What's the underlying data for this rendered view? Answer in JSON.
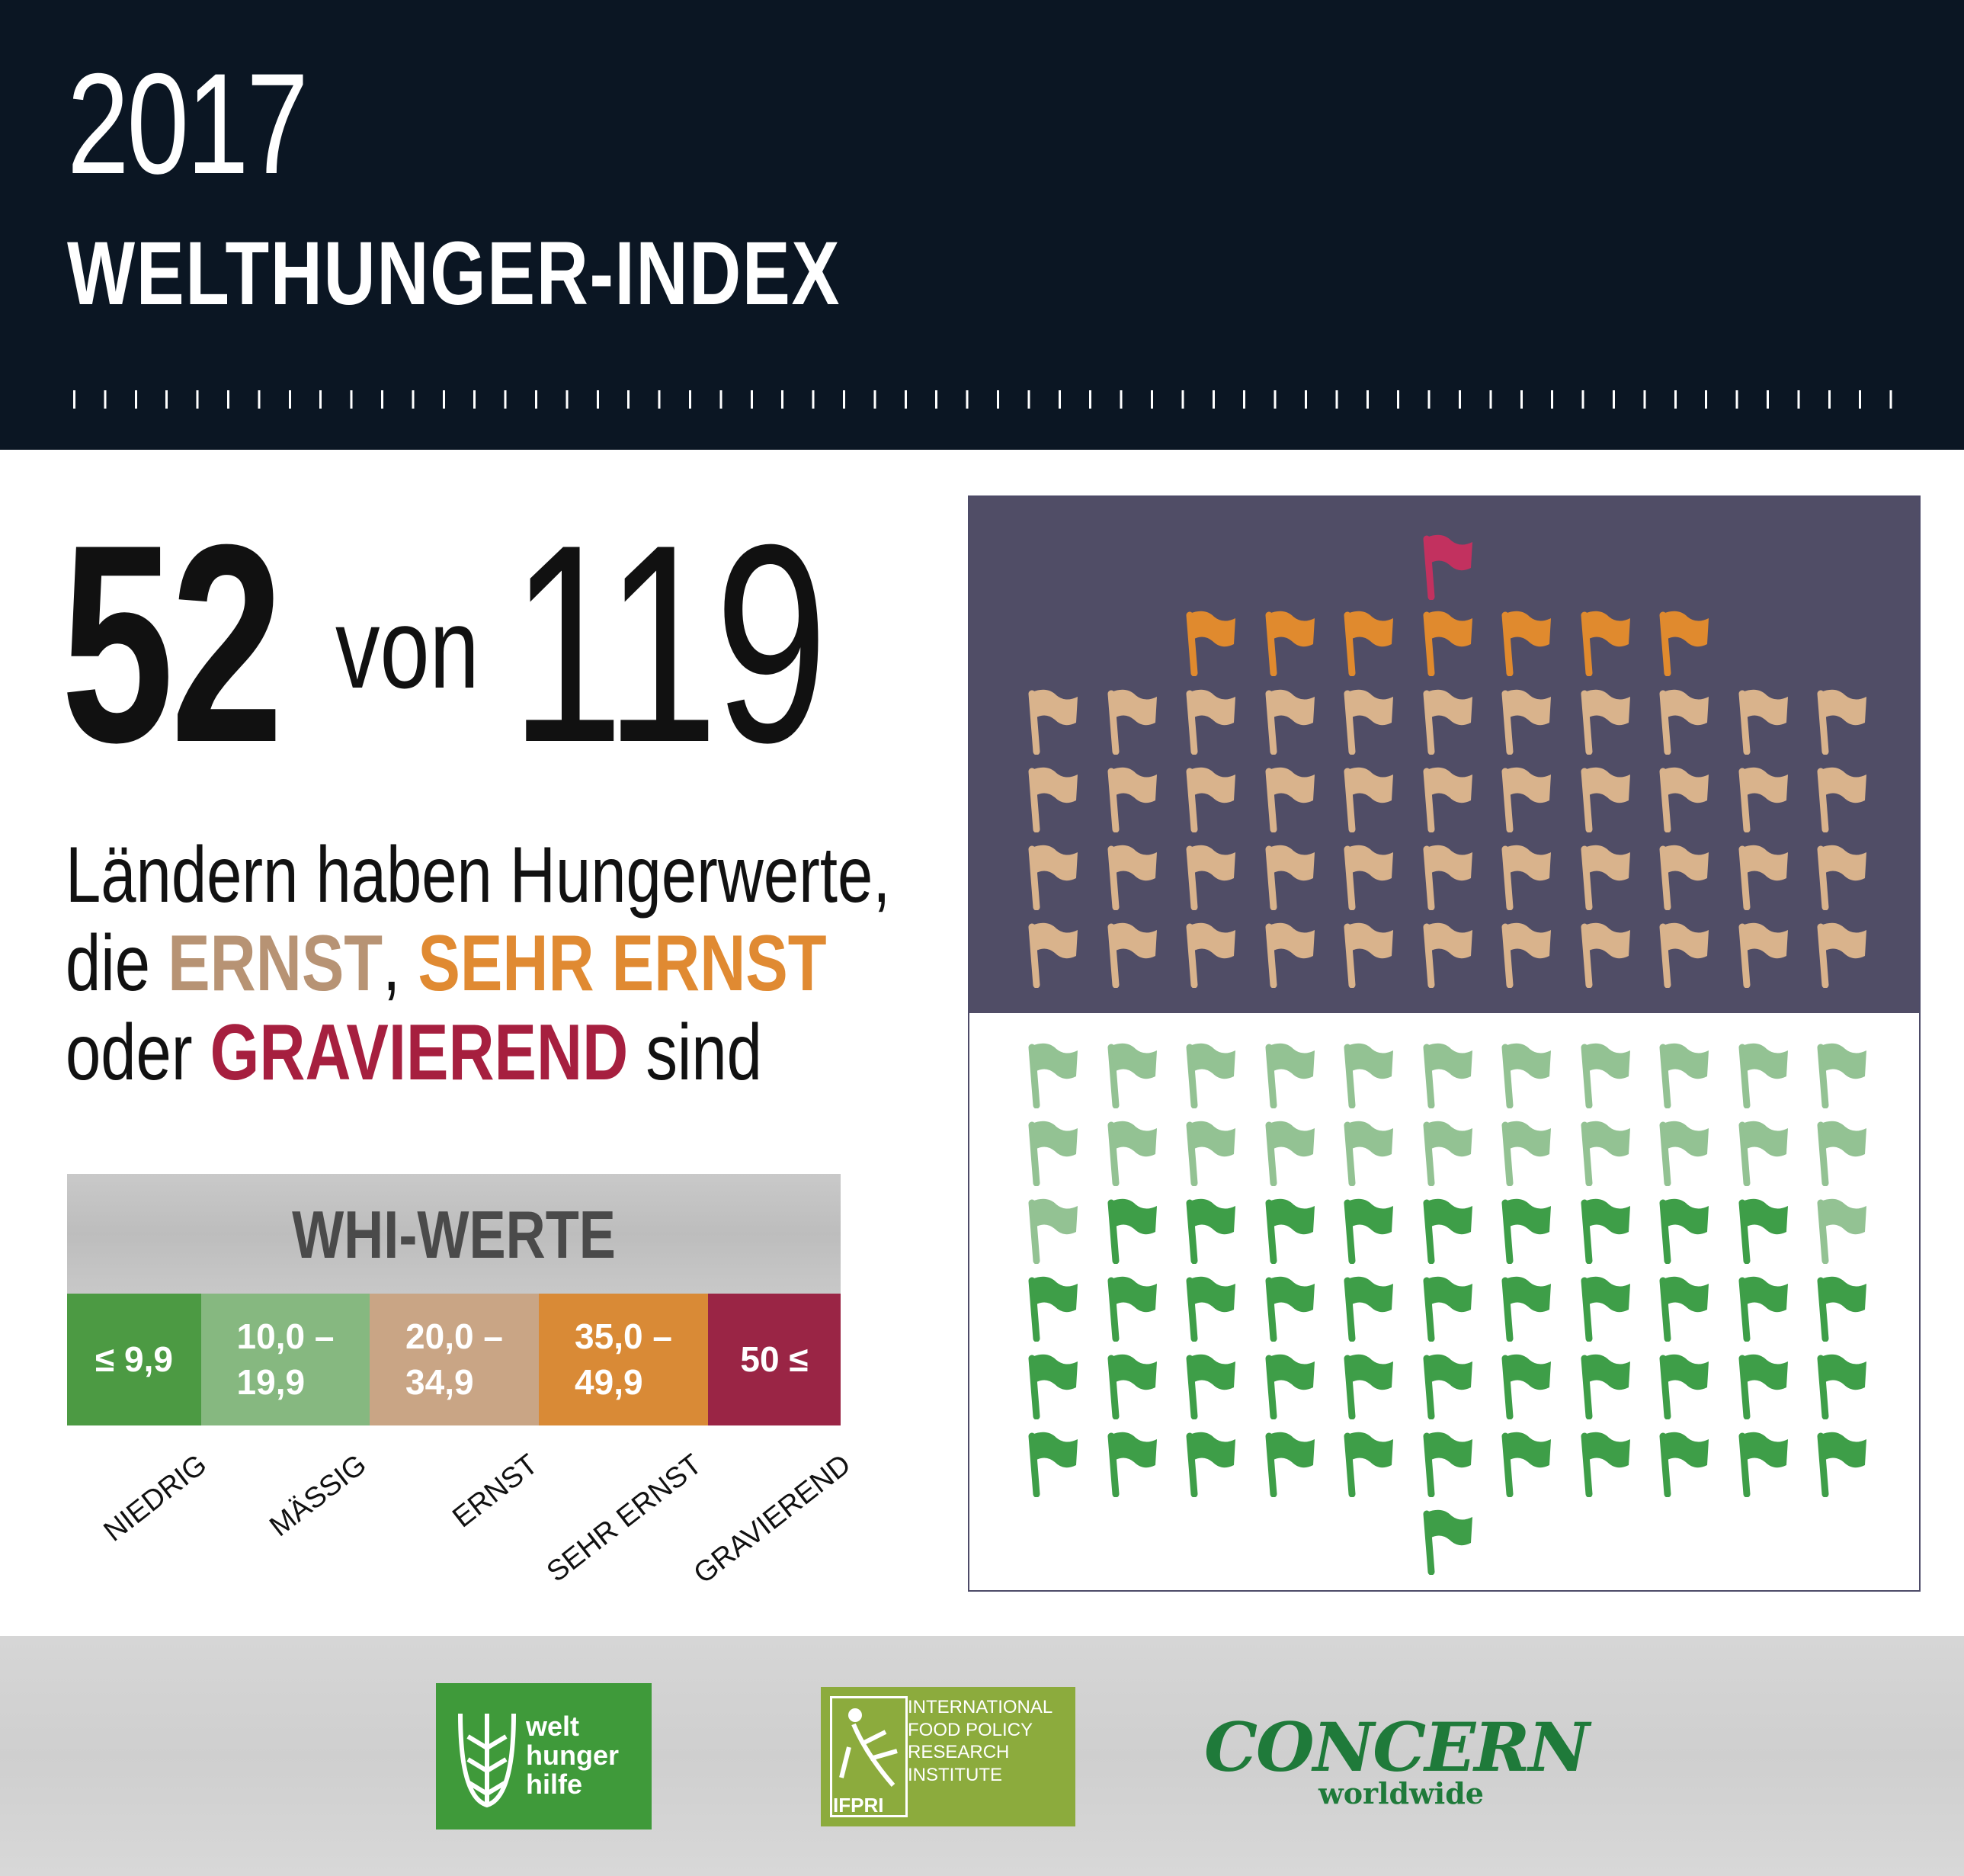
{
  "header": {
    "year": "2017",
    "title": "WELTHUNGER-INDEX"
  },
  "headline": {
    "count": "52",
    "connector": "von",
    "total": "119"
  },
  "sentence": {
    "line1": "Ländern haben Hungerwerte,",
    "line2_pre": "die ",
    "ernst": "ERNST",
    "comma": ", ",
    "sehr_ernst": "SEHR ERNST",
    "line3_pre": "oder ",
    "gravierend": "GRAVIEREND",
    "line3_post": " sind"
  },
  "legend": {
    "title": "WHI-WERTE",
    "segments": [
      {
        "line1": "≤ 9,9",
        "line2": "",
        "color": "#4c9a43"
      },
      {
        "line1": "10,0 –",
        "line2": "19,9",
        "color": "#86b880"
      },
      {
        "line1": "20,0 –",
        "line2": "34,9",
        "color": "#c9a585"
      },
      {
        "line1": "35,0 –",
        "line2": "49,9",
        "color": "#d98a36"
      },
      {
        "line1": "50 ≤",
        "line2": "",
        "color": "#9a2545"
      }
    ],
    "categories": [
      "NIEDRIG",
      "MÄSSIG",
      "ERNST",
      "SEHR ERNST",
      "GRAVIEREND"
    ]
  },
  "flags": {
    "gravierend_count": 1,
    "sehr_ernst_count": 7,
    "ernst_count": 44,
    "maessig_count": 24,
    "niedrig_count": 43,
    "colors": {
      "gravierend": "#c2315f",
      "sehr_ernst": "#e08a2e",
      "ernst": "#d9b38c",
      "maessig": "#93c293",
      "niedrig": "#3e9e48",
      "panel_top": "#504d66"
    }
  },
  "footer": {
    "whh_lines": [
      "welt",
      "hunger",
      "hilfe"
    ],
    "ifpri_abbr": "IFPRI",
    "ifpri_name": [
      "INTERNATIONAL",
      "FOOD POLICY",
      "RESEARCH",
      "INSTITUTE"
    ],
    "concern_main": "CONCERN",
    "concern_sub": "worldwide"
  }
}
